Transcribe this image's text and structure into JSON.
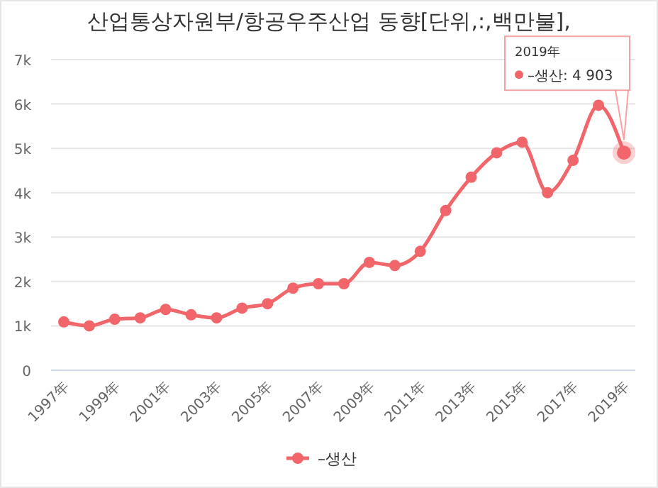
{
  "chart_data": {
    "type": "line",
    "title": "산업통상자원부/항공우주산업 동향[단위,:,백만불],",
    "categories": [
      "1997年",
      null,
      "1999年",
      null,
      "2001年",
      null,
      "2003年",
      null,
      "2005年",
      null,
      "2007年",
      null,
      "2009年",
      null,
      "2011年",
      null,
      "2013年",
      null,
      "2015年",
      null,
      "2017年",
      null,
      "2019年"
    ],
    "series": [
      {
        "name": "–생산",
        "color": "#f0666a",
        "values": [
          1090,
          1000,
          1150,
          1180,
          1370,
          1250,
          1180,
          1400,
          1500,
          1850,
          1950,
          1950,
          2430,
          2360,
          2680,
          3600,
          4350,
          4900,
          5140,
          4000,
          4730,
          5970,
          4903
        ]
      }
    ],
    "ylim": [
      0,
      7000
    ],
    "yticks": [
      0,
      {
        "value": 1000,
        "label": "1k"
      },
      {
        "value": 2000,
        "label": "2k"
      },
      {
        "value": 3000,
        "label": "3k"
      },
      {
        "value": 4000,
        "label": "4k"
      },
      {
        "value": 5000,
        "label": "5k"
      },
      {
        "value": 6000,
        "label": "6k"
      },
      {
        "value": 7000,
        "label": "7k"
      }
    ],
    "grid": "y",
    "legend": "bottom",
    "marker": "circle",
    "line_style": "solid",
    "annotations": [
      "2019年\n–생산: 4 903"
    ]
  }
}
